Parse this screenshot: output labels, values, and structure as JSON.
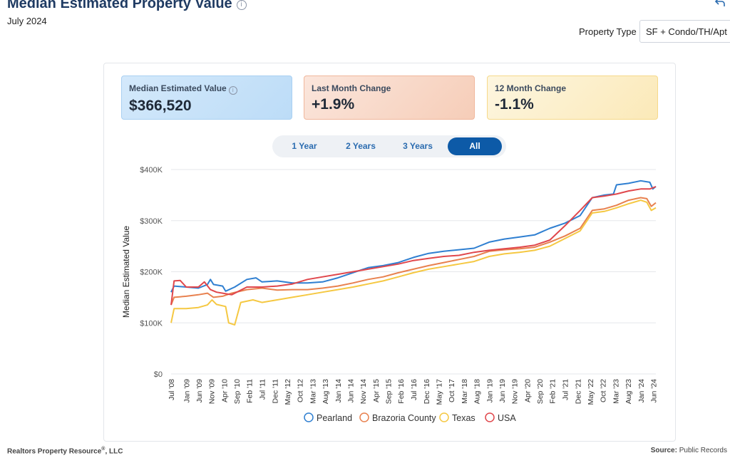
{
  "header": {
    "title": "Median Estimated Property Value",
    "info_icon": "info-icon",
    "subtitle": "July 2024",
    "share_icon": "share-icon"
  },
  "filter": {
    "label": "Property Type",
    "selected": "SF + Condo/TH/Apt"
  },
  "cards": [
    {
      "label": "Median Estimated Value",
      "value": "$366,520",
      "color": "#bcdcf7"
    },
    {
      "label": "Last Month Change",
      "value": "+1.9%",
      "color": "#f6cdb8"
    },
    {
      "label": "12 Month Change",
      "value": "-1.1%",
      "color": "#fbe9b8"
    }
  ],
  "range_tabs": [
    "1 Year",
    "2 Years",
    "3 Years",
    "All"
  ],
  "active_tab": "All",
  "chart_data": {
    "type": "line",
    "title": "",
    "xlabel": "",
    "ylabel": "Median Estimated Value",
    "ylim": [
      0,
      400000
    ],
    "yticks": [
      0,
      100000,
      200000,
      300000,
      400000
    ],
    "ytick_labels": [
      "$0",
      "$100K",
      "$200K",
      "$300K",
      "$400K"
    ],
    "xlim": [
      2008.5,
      2024.5
    ],
    "xticks": [
      2008.5,
      2009.0,
      2009.42,
      2009.83,
      2010.25,
      2010.67,
      2011.08,
      2011.5,
      2011.92,
      2012.33,
      2012.75,
      2013.17,
      2013.58,
      2014.0,
      2014.42,
      2014.83,
      2015.25,
      2015.67,
      2016.08,
      2016.5,
      2016.92,
      2017.33,
      2017.75,
      2018.17,
      2018.58,
      2019.0,
      2019.42,
      2019.83,
      2020.25,
      2020.67,
      2021.08,
      2021.5,
      2021.92,
      2022.33,
      2022.75,
      2023.17,
      2023.58,
      2024.0,
      2024.42
    ],
    "xtick_labels": [
      "Jul '08",
      "Jan '09",
      "Jun '09",
      "Nov '09",
      "Apr '10",
      "Sep '10",
      "Feb '11",
      "Jul '11",
      "Dec '11",
      "May '12",
      "Oct '12",
      "Mar '13",
      "Aug '13",
      "Jan '14",
      "Jun '14",
      "Nov '14",
      "Apr '15",
      "Sep '15",
      "Feb '16",
      "Jul '16",
      "Dec '16",
      "May '17",
      "Oct '17",
      "Mar '18",
      "Aug '18",
      "Jan '19",
      "Jun '19",
      "Nov '19",
      "Apr '20",
      "Sep '20",
      "Feb '21",
      "Jul '21",
      "Dec '21",
      "May '22",
      "Oct '22",
      "Mar '23",
      "Aug '23",
      "Jan '24",
      "Jun '24"
    ],
    "grid": true,
    "legend": "bottom-center",
    "series": [
      {
        "name": "Pearland",
        "color": "#2f7fd1",
        "points": [
          [
            2008.5,
            160000
          ],
          [
            2008.6,
            172000
          ],
          [
            2009.0,
            170000
          ],
          [
            2009.4,
            168000
          ],
          [
            2009.7,
            175000
          ],
          [
            2009.8,
            185000
          ],
          [
            2009.9,
            175000
          ],
          [
            2010.2,
            172000
          ],
          [
            2010.3,
            162000
          ],
          [
            2010.6,
            170000
          ],
          [
            2011.0,
            185000
          ],
          [
            2011.3,
            188000
          ],
          [
            2011.5,
            180000
          ],
          [
            2012.0,
            182000
          ],
          [
            2012.5,
            178000
          ],
          [
            2013.0,
            178000
          ],
          [
            2013.5,
            180000
          ],
          [
            2014.0,
            188000
          ],
          [
            2014.5,
            198000
          ],
          [
            2015.0,
            208000
          ],
          [
            2015.5,
            212000
          ],
          [
            2016.0,
            218000
          ],
          [
            2016.5,
            228000
          ],
          [
            2017.0,
            236000
          ],
          [
            2017.5,
            240000
          ],
          [
            2018.0,
            243000
          ],
          [
            2018.5,
            246000
          ],
          [
            2019.0,
            258000
          ],
          [
            2019.5,
            264000
          ],
          [
            2020.0,
            268000
          ],
          [
            2020.5,
            272000
          ],
          [
            2021.0,
            285000
          ],
          [
            2021.5,
            295000
          ],
          [
            2022.0,
            310000
          ],
          [
            2022.4,
            345000
          ],
          [
            2022.8,
            350000
          ],
          [
            2023.1,
            352000
          ],
          [
            2023.2,
            370000
          ],
          [
            2023.6,
            373000
          ],
          [
            2024.0,
            378000
          ],
          [
            2024.3,
            375000
          ],
          [
            2024.4,
            362000
          ],
          [
            2024.5,
            367000
          ]
        ]
      },
      {
        "name": "Brazoria County",
        "color": "#e8814f",
        "points": [
          [
            2008.5,
            135000
          ],
          [
            2008.6,
            150000
          ],
          [
            2009.0,
            152000
          ],
          [
            2009.4,
            155000
          ],
          [
            2009.7,
            158000
          ],
          [
            2009.9,
            150000
          ],
          [
            2010.2,
            152000
          ],
          [
            2010.5,
            158000
          ],
          [
            2011.0,
            165000
          ],
          [
            2011.5,
            168000
          ],
          [
            2012.0,
            164000
          ],
          [
            2012.5,
            165000
          ],
          [
            2013.0,
            165000
          ],
          [
            2013.5,
            168000
          ],
          [
            2014.0,
            172000
          ],
          [
            2014.5,
            178000
          ],
          [
            2015.0,
            185000
          ],
          [
            2015.5,
            190000
          ],
          [
            2016.0,
            198000
          ],
          [
            2016.5,
            205000
          ],
          [
            2017.0,
            212000
          ],
          [
            2017.5,
            218000
          ],
          [
            2018.0,
            224000
          ],
          [
            2018.5,
            230000
          ],
          [
            2019.0,
            240000
          ],
          [
            2019.5,
            243000
          ],
          [
            2020.0,
            245000
          ],
          [
            2020.5,
            248000
          ],
          [
            2021.0,
            258000
          ],
          [
            2021.5,
            270000
          ],
          [
            2022.0,
            285000
          ],
          [
            2022.4,
            320000
          ],
          [
            2022.8,
            323000
          ],
          [
            2023.2,
            330000
          ],
          [
            2023.6,
            340000
          ],
          [
            2024.0,
            345000
          ],
          [
            2024.2,
            343000
          ],
          [
            2024.35,
            328000
          ],
          [
            2024.5,
            335000
          ]
        ]
      },
      {
        "name": "Texas",
        "color": "#f5c842",
        "points": [
          [
            2008.5,
            100000
          ],
          [
            2008.6,
            128000
          ],
          [
            2009.0,
            128000
          ],
          [
            2009.4,
            130000
          ],
          [
            2009.7,
            135000
          ],
          [
            2009.85,
            145000
          ],
          [
            2010.0,
            136000
          ],
          [
            2010.3,
            132000
          ],
          [
            2010.4,
            100000
          ],
          [
            2010.6,
            96000
          ],
          [
            2010.8,
            140000
          ],
          [
            2011.2,
            145000
          ],
          [
            2011.5,
            140000
          ],
          [
            2012.0,
            145000
          ],
          [
            2012.5,
            150000
          ],
          [
            2013.0,
            155000
          ],
          [
            2013.5,
            160000
          ],
          [
            2014.0,
            165000
          ],
          [
            2014.5,
            170000
          ],
          [
            2015.0,
            176000
          ],
          [
            2015.5,
            182000
          ],
          [
            2016.0,
            190000
          ],
          [
            2016.5,
            198000
          ],
          [
            2017.0,
            205000
          ],
          [
            2017.5,
            210000
          ],
          [
            2018.0,
            215000
          ],
          [
            2018.5,
            220000
          ],
          [
            2019.0,
            230000
          ],
          [
            2019.5,
            235000
          ],
          [
            2020.0,
            238000
          ],
          [
            2020.5,
            242000
          ],
          [
            2021.0,
            250000
          ],
          [
            2021.5,
            265000
          ],
          [
            2022.0,
            280000
          ],
          [
            2022.4,
            315000
          ],
          [
            2022.8,
            318000
          ],
          [
            2023.2,
            325000
          ],
          [
            2023.6,
            333000
          ],
          [
            2024.0,
            340000
          ],
          [
            2024.2,
            336000
          ],
          [
            2024.35,
            320000
          ],
          [
            2024.5,
            325000
          ]
        ]
      },
      {
        "name": "USA",
        "color": "#e0474c",
        "points": [
          [
            2008.5,
            135000
          ],
          [
            2008.6,
            182000
          ],
          [
            2008.8,
            183000
          ],
          [
            2009.0,
            170000
          ],
          [
            2009.4,
            170000
          ],
          [
            2009.6,
            180000
          ],
          [
            2009.8,
            165000
          ],
          [
            2010.0,
            160000
          ],
          [
            2010.2,
            158000
          ],
          [
            2010.5,
            155000
          ],
          [
            2011.0,
            170000
          ],
          [
            2011.5,
            170000
          ],
          [
            2012.0,
            172000
          ],
          [
            2012.5,
            176000
          ],
          [
            2013.0,
            185000
          ],
          [
            2013.5,
            190000
          ],
          [
            2014.0,
            195000
          ],
          [
            2014.5,
            200000
          ],
          [
            2015.0,
            205000
          ],
          [
            2015.5,
            210000
          ],
          [
            2016.0,
            215000
          ],
          [
            2016.5,
            222000
          ],
          [
            2017.0,
            226000
          ],
          [
            2017.5,
            230000
          ],
          [
            2018.0,
            232000
          ],
          [
            2018.5,
            238000
          ],
          [
            2019.0,
            242000
          ],
          [
            2019.5,
            245000
          ],
          [
            2020.0,
            248000
          ],
          [
            2020.5,
            252000
          ],
          [
            2021.0,
            262000
          ],
          [
            2021.5,
            290000
          ],
          [
            2022.0,
            320000
          ],
          [
            2022.4,
            345000
          ],
          [
            2022.8,
            348000
          ],
          [
            2023.2,
            352000
          ],
          [
            2023.6,
            358000
          ],
          [
            2024.0,
            362000
          ],
          [
            2024.3,
            362000
          ],
          [
            2024.5,
            366520
          ]
        ]
      }
    ]
  },
  "footer": {
    "left": "Realtors Property Resource",
    "left_mark": "®",
    "left_suffix": ", LLC",
    "right_label": "Source:",
    "right_value": "Public Records"
  }
}
